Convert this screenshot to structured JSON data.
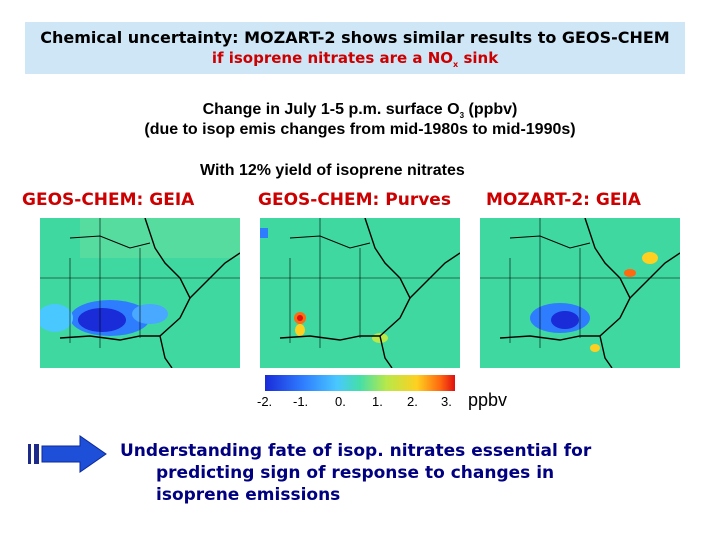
{
  "banner": {
    "line1": "Chemical uncertainty: MOZART-2 shows similar results to GEOS-CHEM",
    "line2_prefix": "if isoprene nitrates are a NO",
    "line2_sub": "x",
    "line2_suffix": " sink"
  },
  "subtitle": {
    "line1_prefix": "Change in July 1-5 p.m. surface O",
    "line1_sub": "3",
    "line1_suffix": " (ppbv)",
    "line2": "(due to isop emis changes from mid-1980s to mid-1990s)"
  },
  "yield_label": "With 12% yield of isoprene nitrates",
  "maps": [
    {
      "label": "GEOS-CHEM: GEIA"
    },
    {
      "label": "GEOS-CHEM: Purves"
    },
    {
      "label": "MOZART-2: GEIA"
    }
  ],
  "colorbar": {
    "ticks": [
      "-2.",
      "-1.",
      "0.",
      "1.",
      "2.",
      "3."
    ],
    "unit": "ppbv"
  },
  "conclusion": {
    "line1": "Understanding fate of isop. nitrates essential for",
    "line2": "predicting sign of response to changes in",
    "line3": "isoprene emissions"
  },
  "colors": {
    "banner_bg": "#cfe6f6",
    "accent_red": "#cc0000",
    "conclusion_blue": "#000080",
    "arrow_blue": "#1e4fd8"
  }
}
